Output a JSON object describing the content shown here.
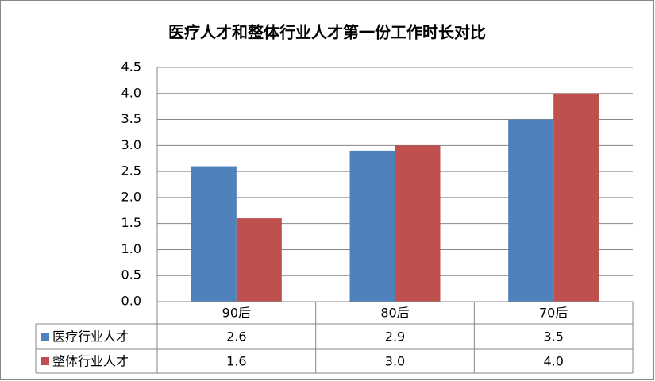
{
  "chart_data": {
    "type": "bar",
    "title": "医疗人才和整体行业人才第一份工作时长对比",
    "categories": [
      "90后",
      "80后",
      "70后"
    ],
    "series": [
      {
        "name": "医疗行业人才",
        "color": "#4f81bd",
        "values": [
          2.6,
          2.9,
          3.5
        ]
      },
      {
        "name": "整体行业人才",
        "color": "#c0504d",
        "values": [
          1.6,
          3.0,
          4.0
        ],
        "value_labels": [
          "1.6",
          "3.0",
          "4.0"
        ]
      }
    ],
    "ylim": [
      0,
      4.5
    ],
    "yticks": [
      {
        "value": 0,
        "label": "0.0"
      },
      0.5,
      {
        "value": 1,
        "label": "1.0"
      },
      1.5,
      {
        "value": 2,
        "label": "2.0"
      },
      2.5,
      {
        "value": 3,
        "label": "3.0"
      },
      3.5,
      {
        "value": 4,
        "label": "4.0"
      },
      4.5
    ],
    "grid": true
  }
}
